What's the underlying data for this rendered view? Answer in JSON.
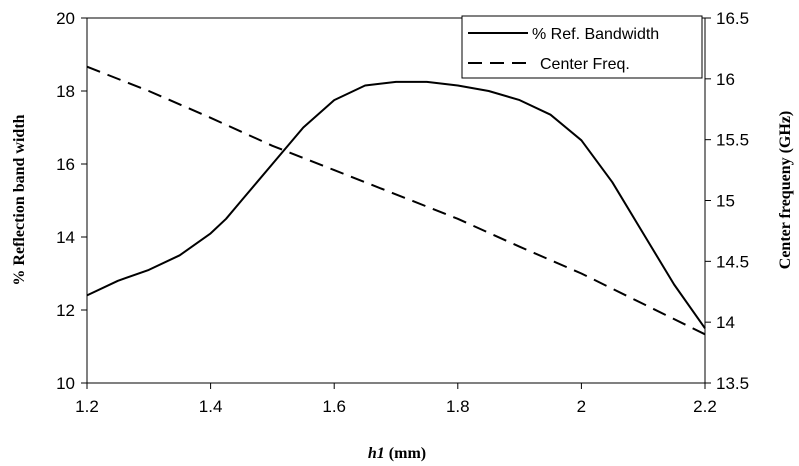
{
  "chart_data": {
    "type": "line",
    "x_axis": {
      "label_var": "h1",
      "label_unit": " (mm)",
      "range": [
        1.2,
        2.2
      ],
      "ticks": [
        1.2,
        1.4,
        1.6,
        1.8,
        2,
        2.2
      ],
      "tick_labels": [
        "1.2",
        "1.4",
        "1.6",
        "1.8",
        "2",
        "2.2"
      ]
    },
    "y_axis_left": {
      "label": "% Reflection band width",
      "range": [
        10,
        20
      ],
      "ticks": [
        10,
        12,
        14,
        16,
        18,
        20
      ],
      "tick_labels": [
        "10",
        "12",
        "14",
        "16",
        "18",
        "20"
      ]
    },
    "y_axis_right": {
      "label": "Center frequeny (GHz)",
      "range": [
        13.5,
        16.5
      ],
      "ticks": [
        13.5,
        14,
        14.5,
        15,
        15.5,
        16,
        16.5
      ],
      "tick_labels": [
        "13.5",
        "14",
        "14.5",
        "15",
        "15.5",
        "16",
        "16.5"
      ]
    },
    "grid": false,
    "legend_position": "top-right",
    "series": [
      {
        "name": "% Ref. Bandwidth",
        "axis": "left",
        "style": "solid",
        "x": [
          1.2,
          1.25,
          1.3,
          1.35,
          1.4,
          1.425,
          1.45,
          1.475,
          1.5,
          1.55,
          1.6,
          1.65,
          1.7,
          1.75,
          1.8,
          1.85,
          1.9,
          1.95,
          2.0,
          2.05,
          2.1,
          2.15,
          2.2
        ],
        "y": [
          12.4,
          12.8,
          13.1,
          13.5,
          14.1,
          14.5,
          15.0,
          15.5,
          16.0,
          17.0,
          17.75,
          18.15,
          18.25,
          18.25,
          18.15,
          18.0,
          17.75,
          17.35,
          16.65,
          15.5,
          14.1,
          12.7,
          11.5
        ]
      },
      {
        "name": "Center Freq.",
        "axis": "right",
        "style": "dashed",
        "x": [
          1.2,
          1.3,
          1.4,
          1.5,
          1.6,
          1.7,
          1.8,
          1.9,
          2.0,
          2.1,
          2.2
        ],
        "y": [
          16.1,
          15.9,
          15.68,
          15.45,
          15.25,
          15.05,
          14.85,
          14.62,
          14.4,
          14.15,
          13.9
        ]
      }
    ]
  }
}
